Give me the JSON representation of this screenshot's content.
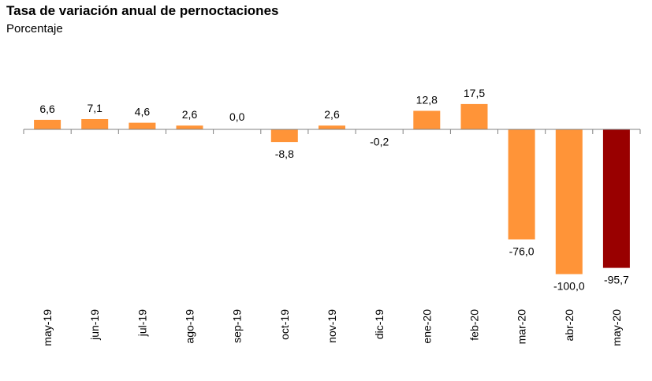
{
  "title": "Tasa de variación anual de pernoctaciones",
  "subtitle": "Porcentaje",
  "chart_data": {
    "type": "bar",
    "title": "Tasa de variación anual de pernoctaciones",
    "subtitle": "Porcentaje",
    "categories": [
      "may-19",
      "jun-19",
      "jul-19",
      "ago-19",
      "sep-19",
      "oct-19",
      "nov-19",
      "dic-19",
      "ene-20",
      "feb-20",
      "mar-20",
      "abr-20",
      "may-20"
    ],
    "values": [
      6.6,
      7.1,
      4.6,
      2.6,
      0.0,
      -8.8,
      2.6,
      -0.2,
      12.8,
      17.5,
      -76.0,
      -100.0,
      -95.7
    ],
    "value_labels": [
      "6,6",
      "7,1",
      "4,6",
      "2,6",
      "0,0",
      "-8,8",
      "2,6",
      "-0,2",
      "12,8",
      "17,5",
      "-76,0",
      "-100,0",
      "-95,7"
    ],
    "colors": {
      "default": "#FF9438",
      "highlight": "#990000",
      "highlight_category": "may-20"
    },
    "xlabel": "",
    "ylabel": "",
    "grid": false,
    "legend": "none"
  }
}
